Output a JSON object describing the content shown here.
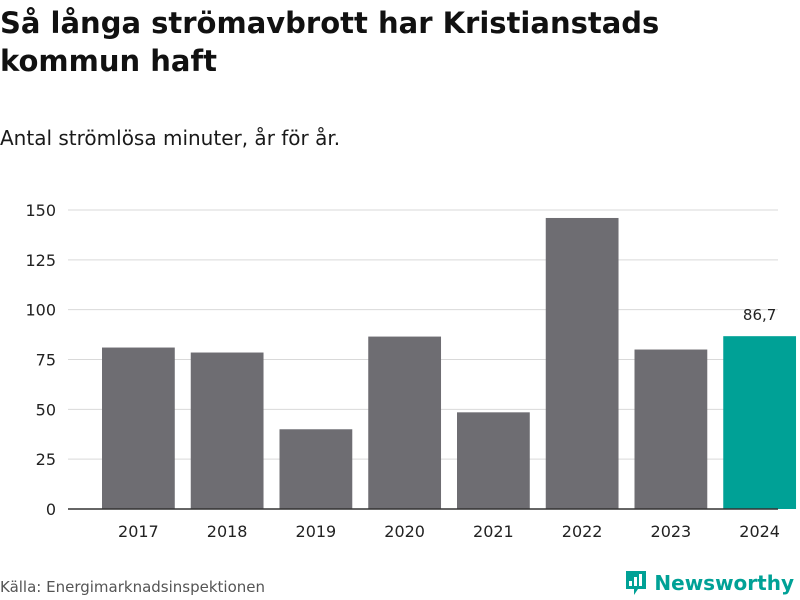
{
  "header": {
    "title": "Så långa strömavbrott har Kristianstads kommun haft",
    "subtitle": "Antal strömlösa minuter, år för år."
  },
  "footer": {
    "source": "Källa: Energimarknadsinspektionen",
    "brand": "Newsworthy",
    "brand_icon": "bar-chart-logo-icon"
  },
  "colors": {
    "bar": "#6e6d72",
    "highlight": "#00a196",
    "grid": "#d9d9d9",
    "axis": "#333333"
  },
  "chart_data": {
    "type": "bar",
    "title": "Så långa strömavbrott har Kristianstads kommun haft",
    "subtitle": "Antal strömlösa minuter, år för år.",
    "xlabel": "",
    "ylabel": "",
    "categories": [
      "2017",
      "2018",
      "2019",
      "2020",
      "2021",
      "2022",
      "2023",
      "2024"
    ],
    "values": [
      81,
      78.5,
      40,
      86.5,
      48.5,
      146,
      80,
      86.7
    ],
    "yticks": [
      "0",
      "25",
      "50",
      "75",
      "100",
      "125",
      "150"
    ],
    "ylim": [
      0,
      150
    ],
    "grid": true,
    "highlight_index": 7,
    "annotations": [
      {
        "category": "2024",
        "text": "86,7"
      }
    ]
  }
}
